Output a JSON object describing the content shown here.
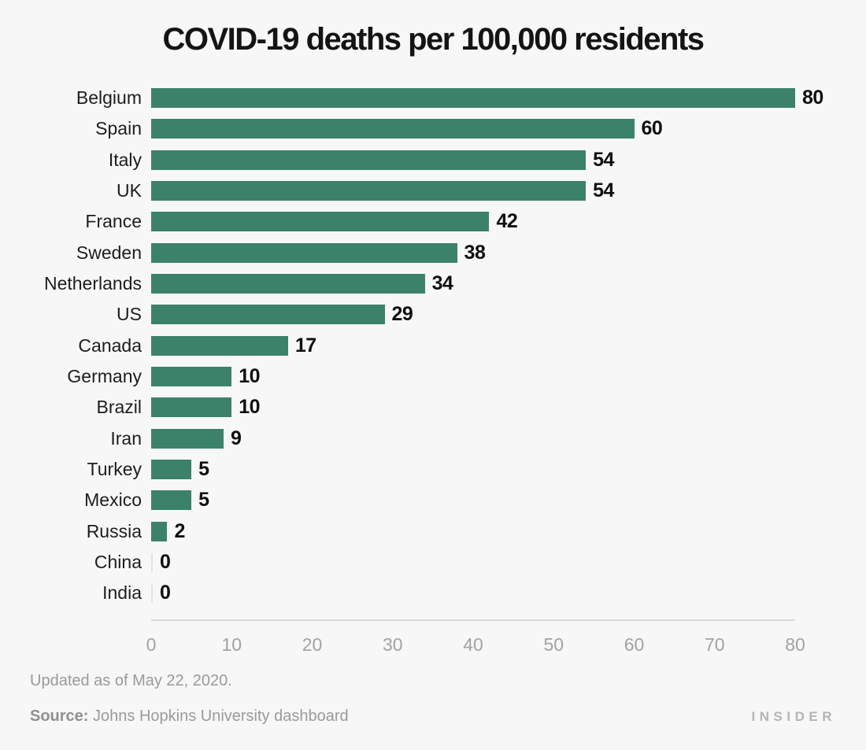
{
  "title": "COVID-19 deaths per 100,000 residents",
  "colors": {
    "bar": "#3c826b",
    "background": "#f7f7f8",
    "axis_line": "#d9d9d9",
    "tick_text": "#a2a2a2",
    "zero_line": "#e2e2e2"
  },
  "chart_data": {
    "type": "bar",
    "orientation": "horizontal",
    "title": "COVID-19 deaths per 100,000 residents",
    "categories": [
      "Belgium",
      "Spain",
      "Italy",
      "UK",
      "France",
      "Sweden",
      "Netherlands",
      "US",
      "Canada",
      "Germany",
      "Brazil",
      "Iran",
      "Turkey",
      "Mexico",
      "Russia",
      "China",
      "India"
    ],
    "values": [
      80,
      60,
      54,
      54,
      42,
      38,
      34,
      29,
      17,
      10,
      10,
      9,
      5,
      5,
      2,
      0,
      0
    ],
    "xlim": [
      0,
      80
    ],
    "xticks": [
      0,
      10,
      20,
      30,
      40,
      50,
      60,
      70,
      80
    ],
    "grid": false,
    "value_labels": true,
    "legend": null
  },
  "footer": {
    "updated": "Updated as of May 22, 2020.",
    "source_label": "Source:",
    "source_text": " Johns Hopkins University dashboard",
    "brand": "INSIDER"
  }
}
